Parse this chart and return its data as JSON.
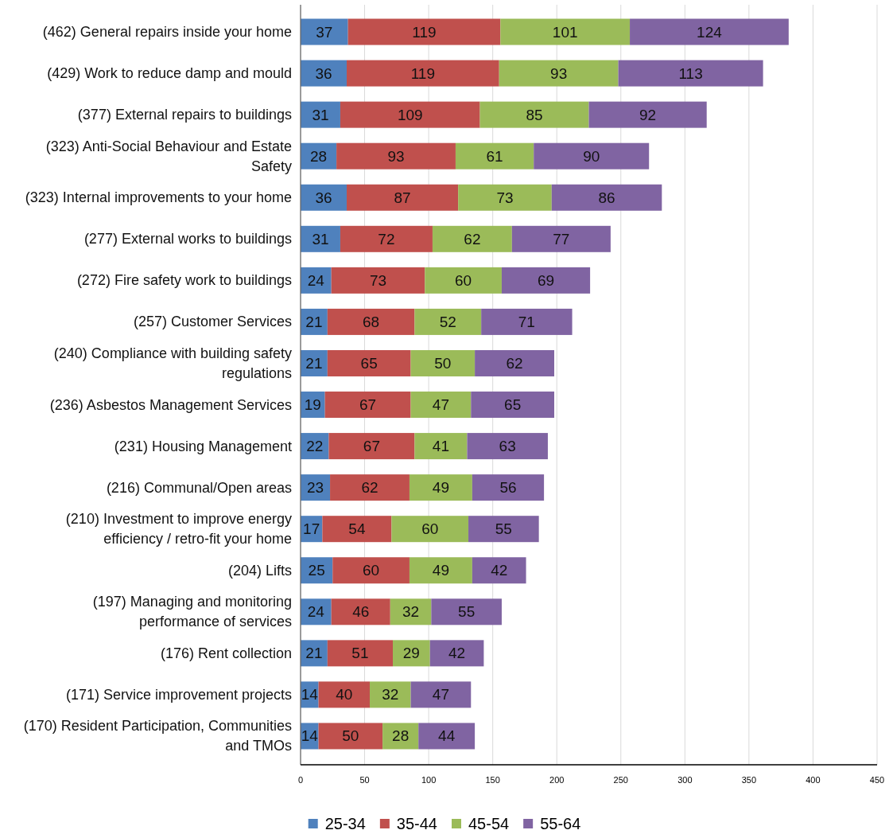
{
  "chart_data": {
    "type": "bar",
    "orientation": "horizontal",
    "stacked": true,
    "categories": [
      "(462) General repairs inside your home",
      "(429) Work to reduce damp and mould",
      "(377) External repairs to buildings",
      "(323) Anti-Social Behaviour and Estate Safety",
      "(323) Internal improvements to your home",
      "(277) External works to buildings",
      "(272) Fire safety work to buildings",
      "(257) Customer Services",
      "(240) Compliance with building safety regulations",
      "(236) Asbestos Management Services",
      "(231) Housing Management",
      "(216) Communal/Open areas",
      "(210) Investment to improve energy efficiency / retro-fit your home",
      "(204) Lifts",
      "(197) Managing and monitoring performance of services",
      "(176) Rent collection",
      "(171) Service improvement projects",
      "(170) Resident Participation, Communities and TMOs"
    ],
    "series": [
      {
        "name": "25-34",
        "color": "#4f81bd",
        "values": [
          37,
          36,
          31,
          28,
          36,
          31,
          24,
          21,
          21,
          19,
          22,
          23,
          17,
          25,
          24,
          21,
          14,
          14
        ]
      },
      {
        "name": "35-44",
        "color": "#c0504d",
        "values": [
          119,
          119,
          109,
          93,
          87,
          72,
          73,
          68,
          65,
          67,
          67,
          62,
          54,
          60,
          46,
          51,
          40,
          50
        ]
      },
      {
        "name": "45-54",
        "color": "#9bbb59",
        "values": [
          101,
          93,
          85,
          61,
          73,
          62,
          60,
          52,
          50,
          47,
          41,
          49,
          60,
          49,
          32,
          29,
          32,
          28
        ]
      },
      {
        "name": "55-64",
        "color": "#8064a2",
        "values": [
          124,
          113,
          92,
          90,
          86,
          77,
          69,
          71,
          62,
          65,
          63,
          56,
          55,
          42,
          55,
          42,
          47,
          44
        ]
      }
    ],
    "xlim": [
      0,
      450
    ],
    "xticks": [
      0,
      50,
      100,
      150,
      200,
      250,
      300,
      350,
      400,
      450
    ],
    "grid": "x",
    "legend": "bottom",
    "data_labels": true
  }
}
